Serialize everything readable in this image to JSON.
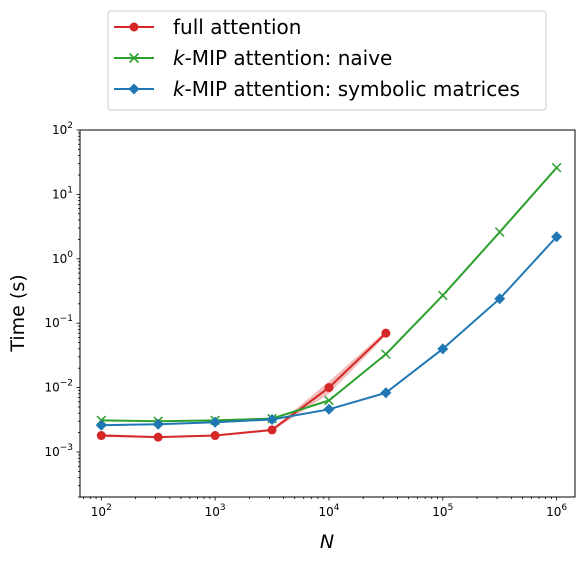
{
  "chart_data": {
    "type": "line",
    "xlabel": "N",
    "ylabel": "Time (s)",
    "xscale": "log",
    "yscale": "log",
    "xlim": [
      65,
      1450000
    ],
    "ylim": [
      0.0002,
      100
    ],
    "x_ticks": [
      {
        "value": 100,
        "base": "10",
        "exp": "2"
      },
      {
        "value": 1000,
        "base": "10",
        "exp": "3"
      },
      {
        "value": 10000,
        "base": "10",
        "exp": "4"
      },
      {
        "value": 100000,
        "base": "10",
        "exp": "5"
      },
      {
        "value": 1000000,
        "base": "10",
        "exp": "6"
      }
    ],
    "y_ticks": [
      {
        "value": 0.001,
        "base": "10",
        "exp": "−3"
      },
      {
        "value": 0.01,
        "base": "10",
        "exp": "−2"
      },
      {
        "value": 0.1,
        "base": "10",
        "exp": "−1"
      },
      {
        "value": 1,
        "base": "10",
        "exp": "0"
      },
      {
        "value": 10,
        "base": "10",
        "exp": "1"
      },
      {
        "value": 100,
        "base": "10",
        "exp": "2"
      }
    ],
    "grid": false,
    "legend_position": "top-center, above plot",
    "series": [
      {
        "name": "full attention",
        "color": "#d62728",
        "marker": "circle",
        "x": [
          100,
          316,
          1000,
          3162,
          10000,
          31623
        ],
        "y": [
          0.0018,
          0.0017,
          0.0018,
          0.0022,
          0.01,
          0.07
        ],
        "band_low": [
          0.0017,
          0.00165,
          0.00175,
          0.0021,
          0.008,
          0.064
        ],
        "band_high": [
          0.0019,
          0.00175,
          0.00185,
          0.0023,
          0.0125,
          0.076
        ]
      },
      {
        "name": "k-MIP attention: naive",
        "name_italic_prefix": "k",
        "name_rest": "-MIP attention: naive",
        "color": "#2ca02c",
        "marker": "x",
        "x": [
          100,
          316,
          1000,
          3162,
          10000,
          31623,
          100000,
          316228,
          1000000
        ],
        "y": [
          0.0031,
          0.003,
          0.0031,
          0.0033,
          0.0063,
          0.033,
          0.27,
          2.6,
          26
        ]
      },
      {
        "name": "k-MIP attention: symbolic matrices",
        "name_italic_prefix": "k",
        "name_rest": "-MIP attention: symbolic matrices",
        "color": "#1f77b4",
        "marker": "diamond",
        "x": [
          100,
          316,
          1000,
          3162,
          10000,
          31623,
          100000,
          316228,
          1000000
        ],
        "y": [
          0.0026,
          0.0027,
          0.0029,
          0.0032,
          0.0046,
          0.0083,
          0.04,
          0.24,
          2.2
        ]
      }
    ]
  }
}
